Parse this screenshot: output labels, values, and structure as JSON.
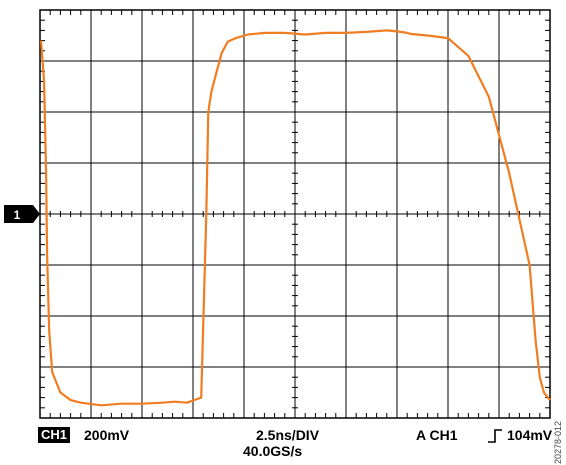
{
  "chart_data": {
    "type": "line",
    "title": "",
    "xlabel": "",
    "ylabel": "",
    "grid": true,
    "divisions": {
      "x": 10,
      "y": 8
    },
    "x_unit": "ns",
    "y_unit": "div",
    "xlim": [
      0,
      25
    ],
    "ylim": [
      -4,
      4
    ],
    "series": [
      {
        "name": "",
        "color": "#f07d21",
        "x": [
          0.05,
          0.2,
          0.3,
          0.35,
          0.45,
          0.6,
          1.0,
          1.5,
          2.0,
          3.0,
          4.0,
          5.0,
          6.0,
          6.6,
          7.2,
          7.9,
          8.05,
          8.15,
          8.25,
          8.4,
          8.6,
          8.9,
          9.2,
          9.6,
          10.2,
          11.0,
          12.0,
          13.0,
          14.0,
          15.0,
          16.0,
          17.0,
          17.5,
          18.0,
          18.2,
          19.0,
          20.0,
          21.0,
          22.0,
          23.0,
          24.0,
          24.3,
          24.5,
          24.7,
          24.9,
          25.0
        ],
        "y": [
          3.4,
          2.6,
          0.8,
          -0.8,
          -2.3,
          -3.1,
          -3.5,
          -3.65,
          -3.7,
          -3.75,
          -3.72,
          -3.72,
          -3.7,
          -3.68,
          -3.7,
          -3.6,
          -1.5,
          0.0,
          2.0,
          2.4,
          2.7,
          3.15,
          3.38,
          3.45,
          3.52,
          3.55,
          3.55,
          3.52,
          3.55,
          3.55,
          3.57,
          3.6,
          3.58,
          3.55,
          3.53,
          3.5,
          3.45,
          3.1,
          2.3,
          0.8,
          -1.0,
          -2.5,
          -3.2,
          -3.5,
          -3.6,
          -3.65
        ]
      }
    ]
  },
  "readouts": {
    "channel_badge": "CH1",
    "volts_per_div": "200mV",
    "time_per_div": "2.5ns/DIV",
    "sample_rate": "40.0GS/s",
    "trigger_prefix": "A  CH1",
    "trigger_level": "104mV",
    "figure_id": "20278-012"
  },
  "marker": {
    "label": "1"
  }
}
